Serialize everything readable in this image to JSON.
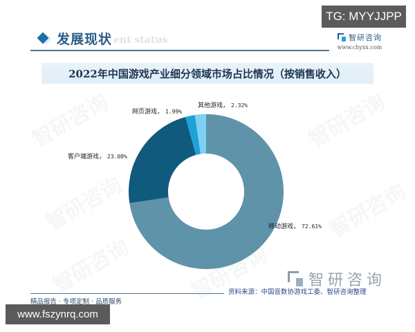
{
  "overlay": {
    "tg_badge": "TG: MYYJJPP",
    "site_badge": "www.fszynrq.com"
  },
  "header": {
    "section_title": "发展现状",
    "section_subtitle": "ent status",
    "brand_name": "智研咨询",
    "brand_url": "www.chyxx.com"
  },
  "chart_title": "2022年中国游戏产业细分领域市场占比情况（按销售收入）",
  "labels": {
    "mobile": {
      "name": "移动游戏，",
      "value": "72.61%"
    },
    "client": {
      "name": "客户端游戏，",
      "value": "23.08%"
    },
    "web": {
      "name": "网页游戏，",
      "value": "1.99%"
    },
    "other": {
      "name": "其他游戏，",
      "value": "2.32%"
    }
  },
  "footer": {
    "tagline": "精品报告 · 专项定制 · 品质服务",
    "source": "资料来源：中国音数协游戏工委、智研咨询整理",
    "watermark_brand": "智研咨询"
  },
  "chart_data": {
    "type": "pie",
    "subtype": "donut",
    "title": "2022年中国游戏产业细分领域市场占比情况（按销售收入）",
    "categories": [
      "移动游戏",
      "客户端游戏",
      "网页游戏",
      "其他游戏"
    ],
    "values": [
      72.61,
      23.08,
      1.99,
      2.32
    ],
    "unit": "%",
    "colors": [
      "#5f93aa",
      "#0f5a7d",
      "#1ea0d8",
      "#7dd0f2"
    ],
    "start_angle": "12 o'clock, clockwise",
    "legend": "none (direct labels)",
    "source": "资料来源：中国音数协游戏工委、智研咨询整理"
  }
}
